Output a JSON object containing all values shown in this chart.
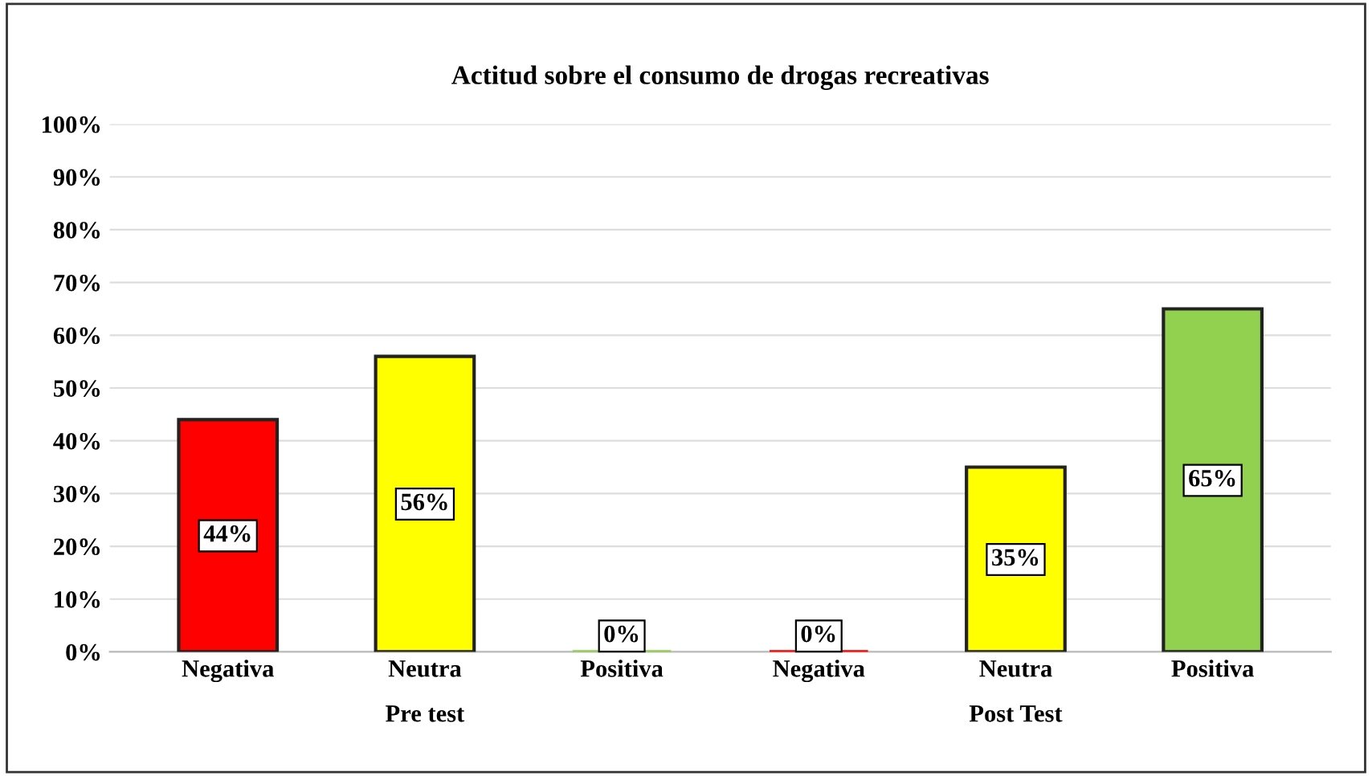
{
  "chart_data": {
    "type": "bar",
    "title": "Actitud sobre el consumo de drogas recreativas",
    "categories": [
      "Negativa",
      "Neutra",
      "Positiva",
      "Negativa",
      "Neutra",
      "Positiva"
    ],
    "values": [
      44,
      56,
      0,
      0,
      35,
      65
    ],
    "colors": [
      "#ff0000",
      "#ffff00",
      "#92d050",
      "#ff0000",
      "#ffff00",
      "#92d050"
    ],
    "value_labels": [
      "44%",
      "56%",
      "0%",
      "0%",
      "35%",
      "65%"
    ],
    "ylim": [
      0,
      100
    ],
    "yticks": [
      {
        "value": 0,
        "label": "0%"
      },
      {
        "value": 10,
        "label": "10%"
      },
      {
        "value": 20,
        "label": "20%"
      },
      {
        "value": 30,
        "label": "30%"
      },
      {
        "value": 40,
        "label": "40%"
      },
      {
        "value": 50,
        "label": "50%"
      },
      {
        "value": 60,
        "label": "60%"
      },
      {
        "value": 70,
        "label": "70%"
      },
      {
        "value": 80,
        "label": "80%"
      },
      {
        "value": 90,
        "label": "90%"
      },
      {
        "value": 100,
        "label": "100%"
      }
    ],
    "grid": "y",
    "annotations": [
      "Pre test",
      "Post Test"
    ]
  }
}
